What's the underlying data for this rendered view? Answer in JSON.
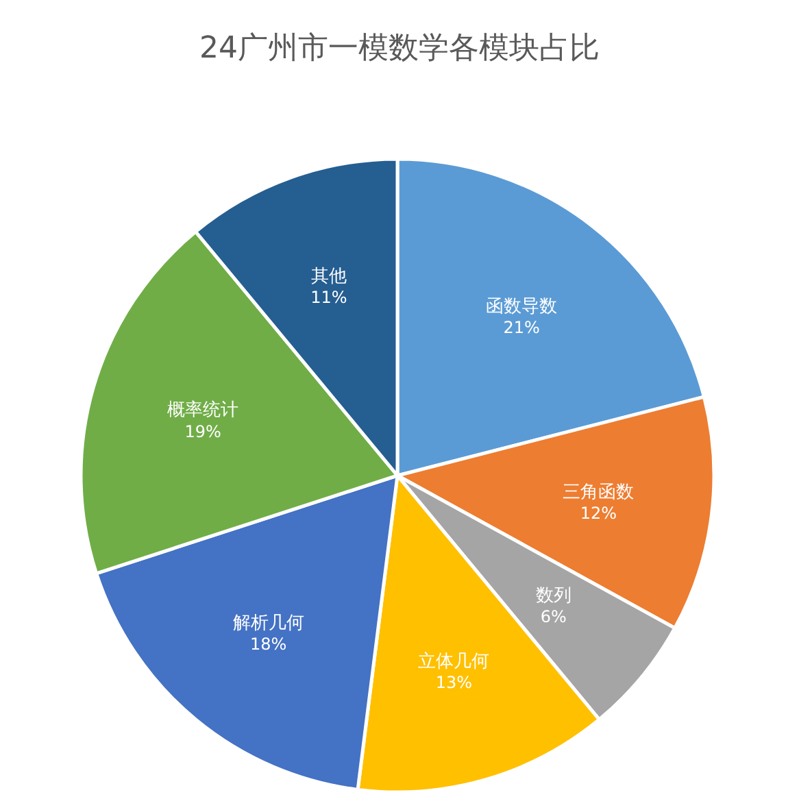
{
  "chart_data": {
    "type": "pie",
    "title": "24广州市一模数学各模块占比",
    "categories": [
      "函数导数",
      "三角函数",
      "数列",
      "立体几何",
      "解析几何",
      "概率统计",
      "其他"
    ],
    "values": [
      21,
      12,
      6,
      13,
      18,
      19,
      11
    ],
    "value_labels": [
      "21%",
      "12%",
      "6%",
      "13%",
      "18%",
      "19%",
      "11%"
    ],
    "colors": [
      "#5b9bd5",
      "#ed7d31",
      "#a5a5a5",
      "#ffc000",
      "#4472c4",
      "#70ad47",
      "#255e91"
    ],
    "legend": false
  }
}
